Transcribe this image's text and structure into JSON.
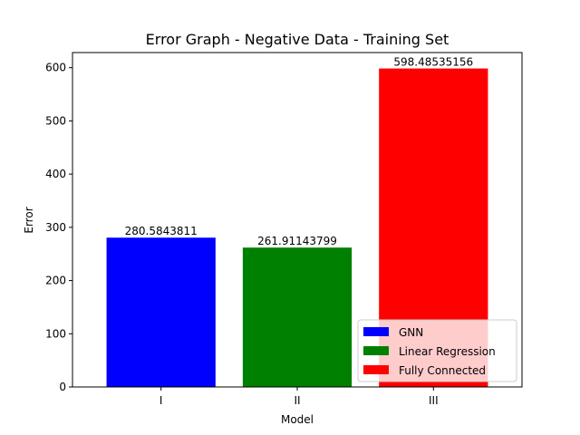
{
  "chart_data": {
    "type": "bar",
    "title": "Error Graph - Negative Data - Training Set",
    "xlabel": "Model",
    "ylabel": "Error",
    "categories": [
      "I",
      "II",
      "III"
    ],
    "values": [
      280.5843811,
      261.91143799,
      598.48535156
    ],
    "value_labels": [
      "280.5843811",
      "261.91143799",
      "598.48535156"
    ],
    "series": [
      {
        "name": "GNN",
        "color": "#0000ff"
      },
      {
        "name": "Linear Regression",
        "color": "#008000"
      },
      {
        "name": "Fully Connected",
        "color": "#ff0000"
      }
    ],
    "ylim": [
      0,
      628.41
    ],
    "yticks": [
      0,
      100,
      200,
      300,
      400,
      500,
      600
    ],
    "grid": false,
    "legend_position": "lower-right"
  }
}
